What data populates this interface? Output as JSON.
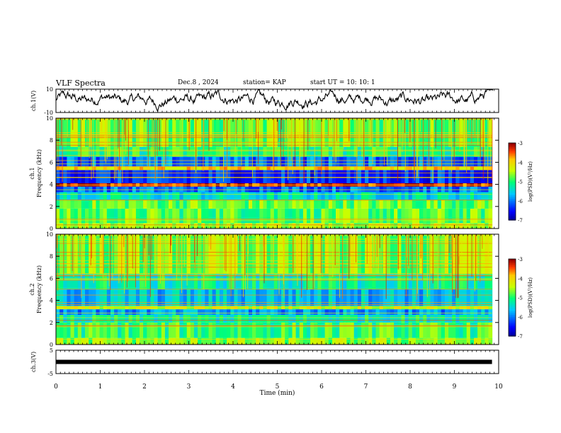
{
  "header": {
    "title": "VLF Spectra",
    "date": "Dec.8 , 2024",
    "station": "station= KAP",
    "start": "start UT = 10: 10: 1"
  },
  "chart_data": [
    {
      "type": "line",
      "name": "ch1-waveform",
      "ylabel": "ch.1(V)",
      "ylim": [
        -10,
        10
      ],
      "yticks": [
        "10",
        "-10"
      ],
      "xlim": [
        0,
        10
      ],
      "color": "#000000"
    },
    {
      "type": "heatmap",
      "name": "ch1-spectrogram",
      "ylabel": "ch.1\nFrequency (kHz)",
      "ylim": [
        0,
        10
      ],
      "yticks": [
        "0",
        "2",
        "4",
        "6",
        "8",
        "10"
      ],
      "xlim": [
        0,
        10
      ],
      "data_xmax": 9.85,
      "colorbar": {
        "range": [
          -7,
          -3
        ],
        "ticks": [
          "-3",
          "-4",
          "-5",
          "-6",
          "-7"
        ],
        "label": "log(PSD)(V²/Hz)"
      },
      "bands": [
        {
          "f0": 0.0,
          "f1": 0.5,
          "level": -4.4
        },
        {
          "f0": 0.5,
          "f1": 1.8,
          "level": -4.8
        },
        {
          "f0": 1.8,
          "f1": 2.6,
          "level": -4.7
        },
        {
          "f0": 2.6,
          "f1": 3.3,
          "level": -5.4
        },
        {
          "f0": 3.3,
          "f1": 3.8,
          "level": -6.0
        },
        {
          "f0": 3.8,
          "f1": 4.1,
          "level": -3.3
        },
        {
          "f0": 4.1,
          "f1": 5.3,
          "level": -6.3
        },
        {
          "f0": 5.3,
          "f1": 5.6,
          "level": -4.0
        },
        {
          "f0": 5.6,
          "f1": 6.5,
          "level": -6.0
        },
        {
          "f0": 6.5,
          "f1": 7.4,
          "level": -5.0
        },
        {
          "f0": 7.4,
          "f1": 10.0,
          "level": -4.7
        }
      ]
    },
    {
      "type": "heatmap",
      "name": "ch2-spectrogram",
      "ylabel": "ch.2\nFrequency (kHz)",
      "ylim": [
        0,
        10
      ],
      "yticks": [
        "0",
        "2",
        "4",
        "6",
        "8",
        "10"
      ],
      "xlim": [
        0,
        10
      ],
      "data_xmax": 9.85,
      "colorbar": {
        "range": [
          -7,
          -3
        ],
        "ticks": [
          "-3",
          "-4",
          "-5",
          "-6",
          "-7"
        ],
        "label": "log(PSD)(V²/Hz)"
      },
      "bands": [
        {
          "f0": 0.0,
          "f1": 0.6,
          "level": -4.6
        },
        {
          "f0": 0.6,
          "f1": 2.0,
          "level": -4.9
        },
        {
          "f0": 2.0,
          "f1": 2.7,
          "level": -5.2
        },
        {
          "f0": 2.7,
          "f1": 3.2,
          "level": -5.8
        },
        {
          "f0": 3.2,
          "f1": 3.5,
          "level": -4.3
        },
        {
          "f0": 3.5,
          "f1": 5.0,
          "level": -5.6
        },
        {
          "f0": 5.0,
          "f1": 6.4,
          "level": -5.2
        },
        {
          "f0": 6.4,
          "f1": 10.0,
          "level": -4.6
        }
      ]
    },
    {
      "type": "line",
      "name": "ch3-waveform",
      "ylabel": "ch.3(V)",
      "ylim": [
        -5,
        5
      ],
      "yticks": [
        "5",
        "-5"
      ],
      "xlim": [
        0,
        10
      ],
      "level": 0,
      "data_xmax": 9.85,
      "color": "#000000"
    }
  ],
  "xaxis": {
    "label": "Time (min)",
    "ticks": [
      "0",
      "1",
      "2",
      "3",
      "4",
      "5",
      "6",
      "7",
      "8",
      "9",
      "10"
    ],
    "range": [
      0,
      10
    ]
  }
}
